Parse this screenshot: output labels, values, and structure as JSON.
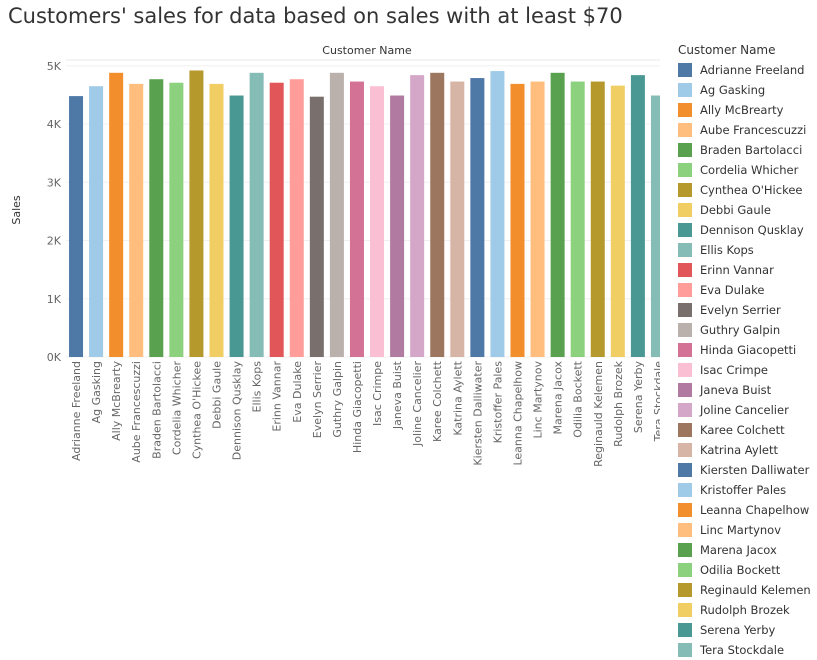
{
  "title": "Customers' sales for data based on sales with at least $70",
  "legend": {
    "title": "Customer Name"
  },
  "chart_data": {
    "type": "bar",
    "title": "Customers' sales for data based on sales with at least $70",
    "column_header": "Customer Name",
    "xlabel": "",
    "ylabel": "Sales",
    "ylim": [
      0,
      5100
    ],
    "y_ticks": [
      0,
      1000,
      2000,
      3000,
      4000,
      5000
    ],
    "y_tick_labels": [
      "0K",
      "1K",
      "2K",
      "3K",
      "4K",
      "5K"
    ],
    "grid": true,
    "legend_position": "right",
    "categories": [
      "Adrianne Freeland",
      "Ag Gasking",
      "Ally McBrearty",
      "Aube Francescuzzi",
      "Braden Bartolacci",
      "Cordelia Whicher",
      "Cynthea O'Hickee",
      "Debbi Gaule",
      "Dennison Qusklay",
      "Ellis Kops",
      "Erinn Vannar",
      "Eva Dulake",
      "Evelyn Serrier",
      "Guthry Galpin",
      "Hinda Giacopetti",
      "Isac Crimpe",
      "Janeva Buist",
      "Joline Cancelier",
      "Karee Colchett",
      "Katrina Aylett",
      "Kiersten Dalliwater",
      "Kristoffer Pales",
      "Leanna Chapelhow",
      "Linc Martynov",
      "Marena Jacox",
      "Odilia Bockett",
      "Reginauld Kelemen",
      "Rudolph Brozek",
      "Serena Yerby",
      "Tera Stockdale"
    ],
    "values": [
      4480,
      4650,
      4880,
      4690,
      4770,
      4710,
      4920,
      4690,
      4490,
      4880,
      4710,
      4770,
      4470,
      4880,
      4730,
      4650,
      4490,
      4840,
      4880,
      4730,
      4790,
      4910,
      4690,
      4730,
      4880,
      4730,
      4730,
      4660,
      4840,
      4490
    ],
    "colors": [
      "#4e79a7",
      "#a0cbe8",
      "#f28e2b",
      "#ffbe7d",
      "#59a14f",
      "#8cd17d",
      "#b6992d",
      "#f1ce63",
      "#499894",
      "#86bcb6",
      "#e15759",
      "#ff9d9a",
      "#79706e",
      "#bab0ac",
      "#d37295",
      "#fabfd2",
      "#b07aa1",
      "#d4a6c8",
      "#9d7660",
      "#d7b5a6",
      "#4e79a7",
      "#a0cbe8",
      "#f28e2b",
      "#ffbe7d",
      "#59a14f",
      "#8cd17d",
      "#b6992d",
      "#f1ce63",
      "#499894",
      "#86bcb6"
    ]
  }
}
